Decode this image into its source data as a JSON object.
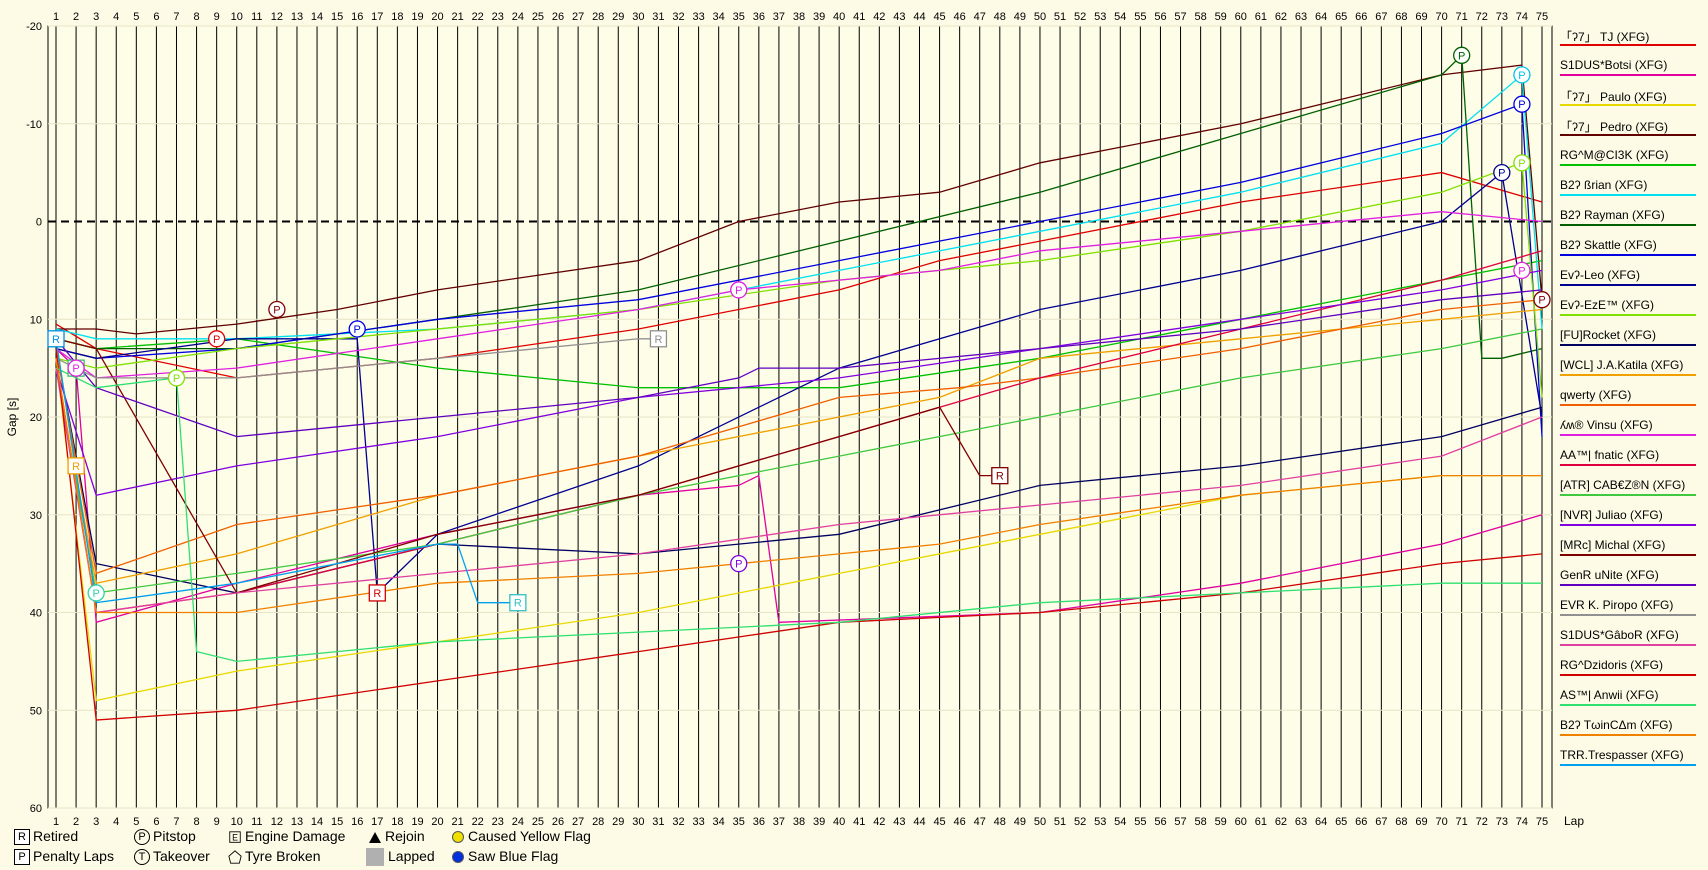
{
  "chart_data": {
    "type": "line",
    "xlabel": "Lap",
    "ylabel": "Gap [s]",
    "xlim": [
      1,
      75
    ],
    "ylim": [
      -20,
      60
    ],
    "y_inverted": true,
    "x_ticks": [
      1,
      2,
      3,
      4,
      5,
      6,
      7,
      8,
      9,
      10,
      11,
      12,
      13,
      14,
      15,
      16,
      17,
      18,
      19,
      20,
      21,
      22,
      23,
      24,
      25,
      26,
      27,
      28,
      29,
      30,
      31,
      32,
      33,
      34,
      35,
      36,
      37,
      38,
      39,
      40,
      41,
      42,
      43,
      44,
      45,
      46,
      47,
      48,
      49,
      50,
      51,
      52,
      53,
      54,
      55,
      56,
      57,
      58,
      59,
      60,
      61,
      62,
      63,
      64,
      65,
      66,
      67,
      68,
      69,
      70,
      71,
      72,
      73,
      74,
      75
    ],
    "y_ticks": [
      -20,
      -10,
      0,
      10,
      20,
      30,
      40,
      50,
      60
    ],
    "grid": "vertical",
    "zero_line": "dashed",
    "series": [
      {
        "name": "「ʔ7」 TJ (XFG)",
        "color": "#e00000",
        "x": [
          1,
          3,
          10,
          20,
          30,
          40,
          45,
          50,
          60,
          70,
          75
        ],
        "y": [
          10.5,
          13,
          16,
          14,
          11,
          7,
          4,
          2,
          -2,
          -5,
          -2
        ]
      },
      {
        "name": "S1DUS*Botsi (XFG)",
        "color": "#e000a0",
        "x": [
          1,
          2,
          3,
          10,
          20,
          30,
          35,
          36,
          37,
          50,
          60,
          70,
          75
        ],
        "y": [
          13,
          15,
          41,
          37,
          32,
          28,
          27,
          26,
          41,
          40,
          37,
          33,
          30
        ]
      },
      {
        "name": "「ʔ7」 Paulo (XFG)",
        "color": "#e8d800",
        "x": [
          1,
          3,
          10,
          20,
          30,
          40,
          50,
          60,
          70,
          75
        ],
        "y": [
          14,
          49,
          46,
          43,
          40,
          36,
          32,
          28,
          26,
          26
        ]
      },
      {
        "name": "「ʔ7」 Pedro (XFG)",
        "color": "#600000",
        "x": [
          1,
          3,
          5,
          10,
          15,
          20,
          30,
          35,
          40,
          45,
          50,
          60,
          70,
          74,
          75
        ],
        "y": [
          11,
          11,
          11.5,
          10.5,
          9,
          7,
          4,
          0,
          -2,
          -3,
          -6,
          -10,
          -15,
          -16,
          8
        ]
      },
      {
        "name": "RG^M@CI3K (XFG)",
        "color": "#00c000",
        "x": [
          1,
          3,
          10,
          20,
          30,
          40,
          50,
          60,
          70,
          75
        ],
        "y": [
          12,
          13,
          12,
          15,
          17,
          17,
          14,
          10,
          6,
          4
        ]
      },
      {
        "name": "B2ʔ ßrian (XFG)",
        "color": "#00e0f0",
        "x": [
          1,
          3,
          10,
          20,
          30,
          40,
          50,
          60,
          70,
          74,
          75
        ],
        "y": [
          11,
          12,
          12,
          11,
          9,
          5,
          1,
          -3,
          -8,
          -15,
          11
        ]
      },
      {
        "name": "B2ʔ Rayman (XFG)",
        "color": "#006000",
        "x": [
          1,
          3,
          10,
          20,
          30,
          40,
          50,
          60,
          70,
          71,
          72,
          73,
          75
        ],
        "y": [
          12,
          13,
          13,
          10,
          7,
          2,
          -3,
          -9,
          -15,
          -17,
          14,
          14,
          13
        ]
      },
      {
        "name": "B2ʔ Skattle (XFG)",
        "color": "#0000e0",
        "x": [
          1,
          3,
          10,
          20,
          30,
          40,
          50,
          60,
          70,
          74,
          75
        ],
        "y": [
          13,
          14,
          13,
          10,
          8,
          4,
          0,
          -4,
          -9,
          -12,
          22
        ]
      },
      {
        "name": "Evʔ-Leo (XFG)",
        "color": "#000090",
        "x": [
          1,
          3,
          10,
          16,
          17,
          20,
          30,
          40,
          50,
          60,
          70,
          73,
          75
        ],
        "y": [
          13,
          14,
          12,
          12,
          38,
          32,
          25,
          15,
          9,
          5,
          0,
          -5,
          20
        ]
      },
      {
        "name": "Evʔ-EzE™ (XFG)",
        "color": "#80e000",
        "x": [
          1,
          3,
          10,
          20,
          30,
          40,
          50,
          60,
          70,
          74,
          75
        ],
        "y": [
          14,
          15,
          13,
          11,
          9,
          6,
          4,
          1,
          -3,
          -6,
          18
        ]
      },
      {
        "name": "[FU]Rocket (XFG)",
        "color": "#000060",
        "x": [
          1,
          3,
          10,
          20,
          30,
          40,
          50,
          60,
          70,
          75
        ],
        "y": [
          13,
          35,
          38,
          33,
          34,
          32,
          27,
          25,
          22,
          19
        ]
      },
      {
        "name": "[WCL] J.A.Katila (XFG)",
        "color": "#f0a000",
        "x": [
          1,
          2,
          3,
          10,
          20,
          30,
          40,
          45,
          50,
          60,
          70,
          75
        ],
        "y": [
          12,
          26,
          37,
          34,
          28,
          24,
          20,
          18,
          14,
          12,
          10,
          9
        ]
      },
      {
        "name": "qwerty (XFG)",
        "color": "#f06000",
        "x": [
          1,
          3,
          10,
          20,
          30,
          40,
          46,
          50,
          60,
          70,
          75
        ],
        "y": [
          13,
          36,
          31,
          28,
          24,
          18,
          17,
          16,
          13,
          9,
          8
        ]
      },
      {
        "name": "ʎʍ® Vinsu (XFG)",
        "color": "#e020e0",
        "x": [
          1,
          3,
          10,
          20,
          30,
          35,
          40,
          45,
          50,
          60,
          70,
          75
        ],
        "y": [
          13,
          16,
          15,
          12,
          9,
          7,
          6,
          5,
          3,
          1,
          -1,
          0
        ]
      },
      {
        "name": "AA™| fnatic (XFG)",
        "color": "#e00040",
        "x": [
          1,
          3,
          10,
          20,
          30,
          40,
          45,
          50,
          60,
          70,
          75
        ],
        "y": [
          14,
          40,
          38,
          33,
          28,
          22,
          19,
          16,
          11,
          6,
          3
        ]
      },
      {
        "name": "[ATR] CAB€Z®N (XFG)",
        "color": "#40c840",
        "x": [
          1,
          3,
          10,
          20,
          30,
          40,
          50,
          60,
          70,
          75
        ],
        "y": [
          15,
          38,
          36,
          33,
          28,
          24,
          20,
          16,
          13,
          11
        ]
      },
      {
        "name": "[NVR] Juliao (XFG)",
        "color": "#8000e0",
        "x": [
          1,
          3,
          10,
          20,
          30,
          40,
          50,
          60,
          70,
          75
        ],
        "y": [
          15,
          28,
          25,
          22,
          18,
          16,
          13,
          10,
          7,
          5
        ]
      },
      {
        "name": "[MRc] Michal (XFG)",
        "color": "#800000",
        "x": [
          1,
          3,
          10,
          20,
          30,
          40,
          45,
          47,
          48
        ],
        "y": [
          12,
          13,
          38,
          32,
          28,
          22,
          19,
          26,
          26
        ]
      },
      {
        "name": "GenR uNite (XFG)",
        "color": "#6000c0",
        "x": [
          1,
          3,
          10,
          20,
          30,
          35,
          36,
          40,
          50,
          60,
          70,
          75
        ],
        "y": [
          12,
          17,
          22,
          20,
          18,
          16,
          15,
          15,
          13,
          11,
          8,
          7
        ]
      },
      {
        "name": "EVR K. Piropo (XFG)",
        "color": "#909090",
        "x": [
          1,
          3,
          10,
          20,
          30,
          31
        ],
        "y": [
          14,
          16,
          16,
          14,
          12,
          12
        ]
      },
      {
        "name": "S1DUS*GâboR (XFG)",
        "color": "#e040a0",
        "x": [
          1,
          3,
          10,
          20,
          30,
          40,
          50,
          60,
          70,
          75
        ],
        "y": [
          15,
          40,
          38,
          36,
          34,
          31,
          29,
          27,
          24,
          20
        ]
      },
      {
        "name": "RG^Dzidoris (XFG)",
        "color": "#d00000",
        "x": [
          1,
          3,
          10,
          20,
          30,
          40,
          50,
          60,
          70,
          75
        ],
        "y": [
          13,
          51,
          50,
          47,
          44,
          41,
          40,
          38,
          35,
          34
        ]
      },
      {
        "name": "AS™| Anwii (XFG)",
        "color": "#30e070",
        "x": [
          1,
          3,
          7,
          8,
          10,
          20,
          30,
          40,
          50,
          60,
          70,
          75
        ],
        "y": [
          15,
          17,
          16,
          44,
          45,
          43,
          42,
          41,
          39,
          38,
          37,
          37
        ]
      },
      {
        "name": "B2ʔ TωinCΔm (XFG)",
        "color": "#f08000",
        "x": [
          1,
          3,
          10,
          20,
          30,
          40,
          45,
          50,
          60,
          70,
          75
        ],
        "y": [
          14,
          40,
          40,
          37,
          36,
          34,
          33,
          31,
          28,
          26,
          26
        ]
      },
      {
        "name": "TRR.Trespasser (XFG)",
        "color": "#00a0f0",
        "x": [
          1,
          3,
          10,
          20,
          21,
          22,
          24
        ],
        "y": [
          12,
          39,
          37,
          33,
          33,
          39,
          39
        ]
      }
    ],
    "markers": [
      {
        "type": "R",
        "x": 1,
        "y": 12,
        "color": "#0090e0"
      },
      {
        "type": "R",
        "x": 2,
        "y": 15,
        "color": "#30c070"
      },
      {
        "type": "R",
        "x": 2,
        "y": 25,
        "color": "#f0a000"
      },
      {
        "type": "R",
        "x": 17,
        "y": 38,
        "color": "#d00000"
      },
      {
        "type": "R",
        "x": 24,
        "y": 39,
        "color": "#30c0c0"
      },
      {
        "type": "R",
        "x": 31,
        "y": 12,
        "color": "#909090"
      },
      {
        "type": "R",
        "x": 48,
        "y": 26,
        "color": "#800000"
      },
      {
        "type": "P",
        "x": 2,
        "y": 15,
        "color": "#e020e0"
      },
      {
        "type": "P",
        "x": 3,
        "y": 38,
        "color": "#30d0b0"
      },
      {
        "type": "P",
        "x": 7,
        "y": 16,
        "color": "#80e000"
      },
      {
        "type": "P",
        "x": 9,
        "y": 12,
        "color": "#e00000"
      },
      {
        "type": "P",
        "x": 12,
        "y": 9,
        "color": "#800000"
      },
      {
        "type": "P",
        "x": 16,
        "y": 11,
        "color": "#0000e0"
      },
      {
        "type": "P",
        "x": 35,
        "y": 7,
        "color": "#e020e0"
      },
      {
        "type": "P",
        "x": 35,
        "y": 35,
        "color": "#8000e0"
      },
      {
        "type": "P",
        "x": 71,
        "y": -17,
        "color": "#006000"
      },
      {
        "type": "P",
        "x": 73,
        "y": -5,
        "color": "#000090"
      },
      {
        "type": "P",
        "x": 74,
        "y": -15,
        "color": "#00c0f0"
      },
      {
        "type": "P",
        "x": 74,
        "y": -12,
        "color": "#0000e0"
      },
      {
        "type": "P",
        "x": 74,
        "y": -6,
        "color": "#80e000"
      },
      {
        "type": "P",
        "x": 74,
        "y": 5,
        "color": "#e020e0"
      },
      {
        "type": "P",
        "x": 75,
        "y": 8,
        "color": "#800000"
      }
    ]
  },
  "bottom_legend": {
    "retired": "Retired",
    "penalty_laps": "Penalty Laps",
    "pitstop": "Pitstop",
    "takeover": "Takeover",
    "engine_damage": "Engine Damage",
    "tyre_broken": "Tyre Broken",
    "rejoin": "Rejoin",
    "lapped": "Lapped",
    "caused_yellow_flag": "Caused Yellow Flag",
    "saw_blue_flag": "Saw Blue Flag",
    "r_glyph": "R",
    "p_glyph": "P",
    "t_glyph": "T",
    "yellow_color": "#f0e000",
    "blue_color": "#0030e0"
  }
}
